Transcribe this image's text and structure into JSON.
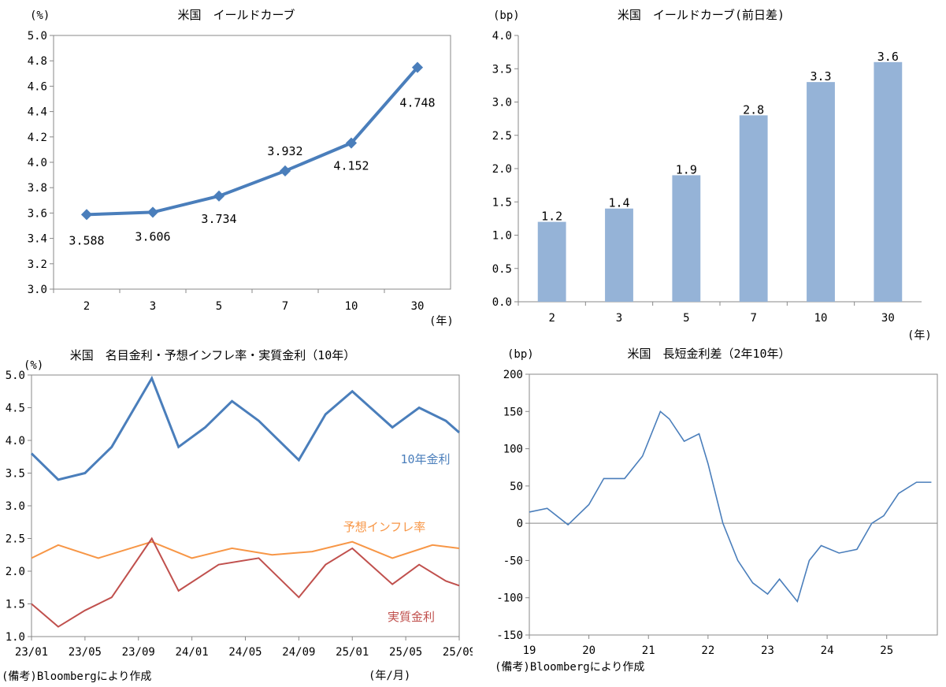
{
  "chart_data": [
    {
      "type": "line",
      "title": "米国　イールドカーブ",
      "yunit": "(%)",
      "xunit": "(年)",
      "categories": [
        "2",
        "3",
        "5",
        "7",
        "10",
        "30"
      ],
      "values": [
        3.588,
        3.606,
        3.734,
        3.932,
        4.152,
        4.748
      ],
      "data_labels": [
        "3.588",
        "3.606",
        "3.734",
        "3.932",
        "4.152",
        "4.748"
      ],
      "ylim": [
        3.0,
        5.0
      ],
      "y_ticks": [
        "3.0",
        "3.2",
        "3.4",
        "3.6",
        "3.8",
        "4.0",
        "4.2",
        "4.4",
        "4.6",
        "4.8",
        "5.0"
      ],
      "color": "#4a7ebb",
      "grid": false
    },
    {
      "type": "bar",
      "title": "米国　イールドカーブ(前日差)",
      "yunit": "(bp)",
      "xunit": "(年)",
      "categories": [
        "2",
        "3",
        "5",
        "7",
        "10",
        "30"
      ],
      "values": [
        1.2,
        1.4,
        1.9,
        2.8,
        3.3,
        3.6
      ],
      "data_labels": [
        "1.2",
        "1.4",
        "1.9",
        "2.8",
        "3.3",
        "3.6"
      ],
      "ylim": [
        0.0,
        4.0
      ],
      "y_ticks": [
        "0.0",
        "0.5",
        "1.0",
        "1.5",
        "2.0",
        "2.5",
        "3.0",
        "3.5",
        "4.0"
      ],
      "color": "#95b3d7",
      "grid": false
    },
    {
      "type": "line",
      "title": "米国　名目金利・予想インフレ率・実質金利（10年）",
      "yunit": "(%)",
      "xunit": "(年/月)",
      "x_ticks": [
        "23/01",
        "23/05",
        "23/09",
        "24/01",
        "24/05",
        "24/09",
        "25/01",
        "25/05",
        "25/09"
      ],
      "ylim": [
        1.0,
        5.0
      ],
      "y_ticks": [
        "1.0",
        "1.5",
        "2.0",
        "2.5",
        "3.0",
        "3.5",
        "4.0",
        "4.5",
        "5.0"
      ],
      "series": [
        {
          "name": "10年金利",
          "color": "#4a7ebb",
          "x": [
            "23/01",
            "23/03",
            "23/05",
            "23/07",
            "23/10",
            "23/12",
            "24/02",
            "24/04",
            "24/06",
            "24/09",
            "24/11",
            "25/01",
            "25/04",
            "25/06",
            "25/08",
            "25/09"
          ],
          "values": [
            3.8,
            3.4,
            3.5,
            3.9,
            4.95,
            3.9,
            4.2,
            4.6,
            4.3,
            3.7,
            4.4,
            4.75,
            4.2,
            4.5,
            4.3,
            4.12
          ]
        },
        {
          "name": "予想インフレ率",
          "color": "#f79646",
          "x": [
            "23/01",
            "23/03",
            "23/06",
            "23/10",
            "24/01",
            "24/04",
            "24/07",
            "24/10",
            "25/01",
            "25/04",
            "25/07",
            "25/09"
          ],
          "values": [
            2.2,
            2.4,
            2.2,
            2.45,
            2.2,
            2.35,
            2.25,
            2.3,
            2.45,
            2.2,
            2.4,
            2.35
          ]
        },
        {
          "name": "実質金利",
          "color": "#c0504d",
          "x": [
            "23/01",
            "23/03",
            "23/05",
            "23/07",
            "23/10",
            "23/12",
            "24/03",
            "24/06",
            "24/09",
            "24/11",
            "25/01",
            "25/04",
            "25/06",
            "25/08",
            "25/09"
          ],
          "values": [
            1.5,
            1.15,
            1.4,
            1.6,
            2.5,
            1.7,
            2.1,
            2.2,
            1.6,
            2.1,
            2.35,
            1.8,
            2.1,
            1.85,
            1.78
          ]
        }
      ],
      "grid": false
    },
    {
      "type": "line",
      "title": "米国　長短金利差（2年10年）",
      "yunit": "(bp)",
      "x_ticks": [
        "19",
        "20",
        "21",
        "22",
        "23",
        "24",
        "25"
      ],
      "ylim": [
        -150,
        200
      ],
      "y_ticks": [
        "-150",
        "-100",
        "-50",
        "0",
        "50",
        "100",
        "150",
        "200"
      ],
      "series": [
        {
          "name": "",
          "color": "#4a7ebb",
          "x": [
            2019.0,
            2019.3,
            2019.65,
            2020.0,
            2020.25,
            2020.6,
            2020.9,
            2021.2,
            2021.35,
            2021.6,
            2021.85,
            2022.0,
            2022.25,
            2022.5,
            2022.75,
            2023.0,
            2023.2,
            2023.5,
            2023.7,
            2023.9,
            2024.2,
            2024.5,
            2024.75,
            2024.95,
            2025.2,
            2025.5,
            2025.75
          ],
          "values": [
            15,
            20,
            -2,
            25,
            60,
            60,
            90,
            150,
            140,
            110,
            120,
            80,
            0,
            -50,
            -80,
            -95,
            -75,
            -105,
            -50,
            -30,
            -40,
            -35,
            0,
            10,
            40,
            55,
            55
          ]
        }
      ],
      "zero_line": true,
      "grid": false
    }
  ],
  "notes": {
    "left": "(備考)Bloombergにより作成",
    "right": "(備考)Bloombergにより作成"
  }
}
